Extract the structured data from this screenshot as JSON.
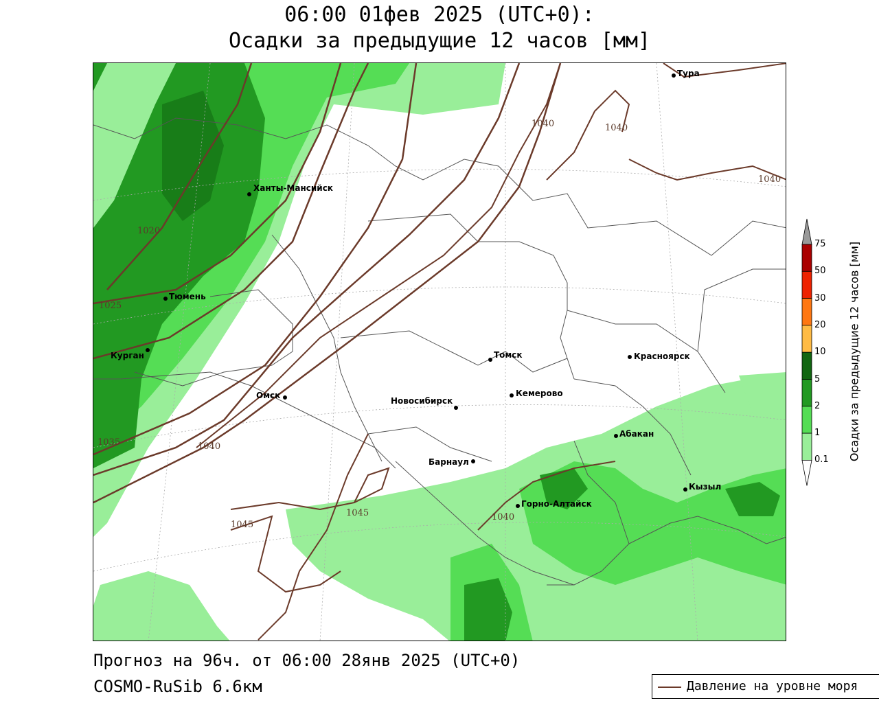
{
  "title": {
    "line1": "06:00 01фев 2025 (UTC+0):",
    "line2": "Осадки за предыдущие 12 часов [мм]"
  },
  "footer": {
    "forecast": "Прогноз на 96ч. от 06:00 28янв 2025 (UTC+0)",
    "model": "COSMO-RuSib 6.6км"
  },
  "legend": {
    "line_label": "Давление на уровне моря",
    "line_color": "#6b3a2a"
  },
  "colorbar": {
    "title": "Осадки за предыдущие 12 часов [мм]",
    "ticks": [
      "0.1",
      "1",
      "2",
      "5",
      "10",
      "20",
      "30",
      "50",
      "75"
    ],
    "colors": [
      "#99ee99",
      "#55dd55",
      "#229922",
      "#116611",
      "#ffbb44",
      "#ff7711",
      "#ee2200",
      "#aa0000"
    ],
    "extend_high_color": "#999999",
    "extend_low_color": "#ffffff"
  },
  "cities": [
    {
      "name": "Тура"
    },
    {
      "name": "Ханты-Мансийск"
    },
    {
      "name": "Тюмень"
    },
    {
      "name": "Курган"
    },
    {
      "name": "Омск"
    },
    {
      "name": "Томск"
    },
    {
      "name": "Красноярск"
    },
    {
      "name": "Кемерово"
    },
    {
      "name": "Новосибирск"
    },
    {
      "name": "Абакан"
    },
    {
      "name": "Барнаул"
    },
    {
      "name": "Кызыл"
    },
    {
      "name": "Горно-Алтайск"
    }
  ],
  "isobar_labels": [
    "1040",
    "1040",
    "1040",
    "1020",
    "1025",
    "1035",
    "1040",
    "1045",
    "1045",
    "1040"
  ]
}
